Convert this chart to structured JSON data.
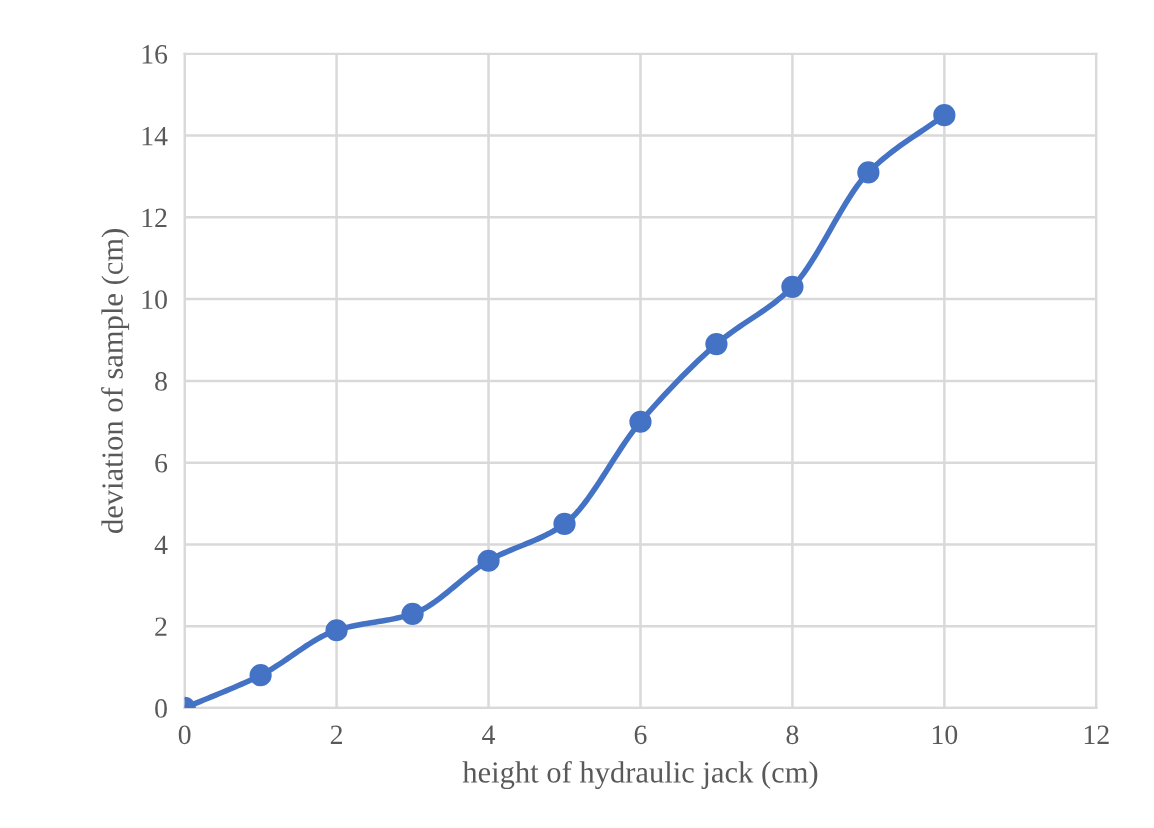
{
  "chart_data": {
    "type": "line",
    "xlabel": "height of hydraulic jack (cm)",
    "ylabel": "deviation of sample (cm)",
    "x": [
      0,
      1,
      2,
      3,
      4,
      5,
      6,
      7,
      8,
      9,
      10
    ],
    "series": [
      {
        "color": "#4472c4",
        "values": [
          0,
          0.8,
          1.9,
          2.3,
          3.6,
          4.5,
          7.0,
          8.9,
          10.3,
          13.1,
          14.5
        ]
      }
    ],
    "xlim": [
      0,
      12
    ],
    "xticks": [
      0,
      2,
      4,
      6,
      8,
      10,
      12
    ],
    "ylim": [
      0,
      16
    ],
    "yticks": [
      0,
      2,
      4,
      6,
      8,
      10,
      12,
      14,
      16
    ],
    "grid": true,
    "marker": "circle",
    "line_style": "solid"
  }
}
